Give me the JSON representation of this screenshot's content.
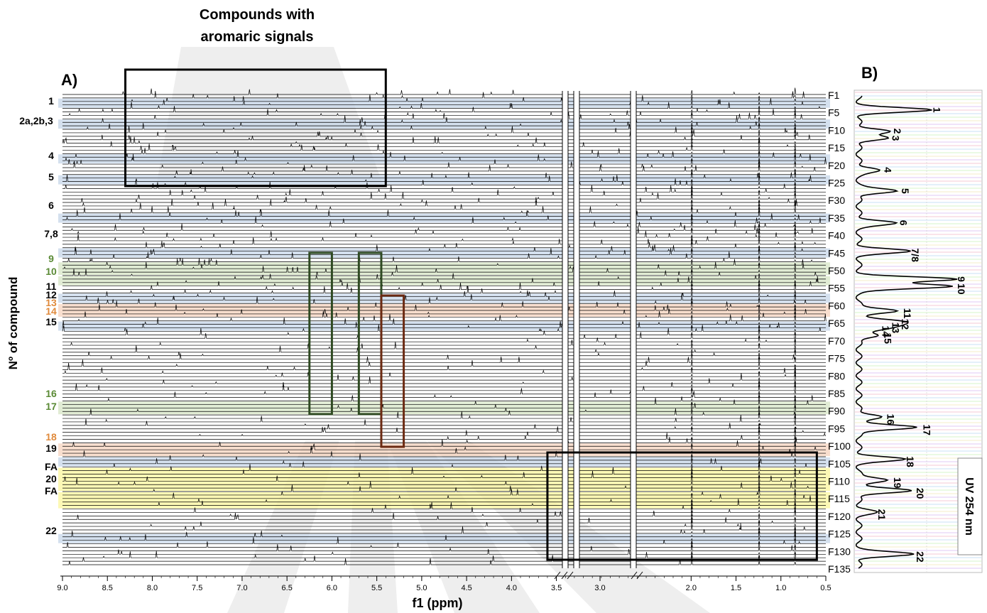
{
  "figure": {
    "panel_a_label": "A)",
    "panel_b_label": "B)",
    "callout_title_line1": "Compounds with",
    "callout_title_line2": "aromaric signals",
    "y_axis_title": "Nº of compound",
    "uv_label": "UV 254 nm"
  },
  "colors": {
    "blue_band": "#c6d5e8",
    "green_band": "#d7e6c6",
    "orange_band": "#f6d3bd",
    "yellow_band": "#fbf59c",
    "green_box": "#2f4a22",
    "brown_box": "#6b2a12",
    "green_text": "#5a8a35",
    "orange_text": "#e08a3c",
    "spectrum_line": "#000000"
  },
  "chart_data": [
    {
      "type": "line",
      "title": "A)",
      "xlabel": "f1  (ppm)",
      "ylabel": "Nº of compound",
      "xlim": [
        9.0,
        0.5
      ],
      "x_ticks": [
        "9.0",
        "8.5",
        "8.0",
        "7.5",
        "7.0",
        "6.5",
        "6.0",
        "5.5",
        "5.0",
        "4.5",
        "4.0",
        "3.5",
        "3.0",
        "2.0",
        "1.5",
        "1.0",
        "0.5"
      ],
      "fractions": [
        "F1",
        "F5",
        "F10",
        "F15",
        "F20",
        "F25",
        "F30",
        "F35",
        "F40",
        "F45",
        "F50",
        "F55",
        "F60",
        "F65",
        "F70",
        "F75",
        "F80",
        "F85",
        "F90",
        "F95",
        "F100",
        "F105",
        "F110",
        "F115",
        "F120",
        "F125",
        "F130",
        "F135"
      ],
      "compound_labels": [
        {
          "text": "1",
          "color": "black"
        },
        {
          "text": "2a,2b,3",
          "color": "black"
        },
        {
          "text": "4",
          "color": "black"
        },
        {
          "text": "5",
          "color": "black"
        },
        {
          "text": "6",
          "color": "black"
        },
        {
          "text": "7,8",
          "color": "black"
        },
        {
          "text": "9",
          "color": "green"
        },
        {
          "text": "10",
          "color": "green"
        },
        {
          "text": "11",
          "color": "black"
        },
        {
          "text": "12",
          "color": "black"
        },
        {
          "text": "13",
          "color": "orange"
        },
        {
          "text": "14",
          "color": "orange"
        },
        {
          "text": "15",
          "color": "black"
        },
        {
          "text": "16",
          "color": "green"
        },
        {
          "text": "17",
          "color": "green"
        },
        {
          "text": "18",
          "color": "orange"
        },
        {
          "text": "19",
          "color": "black"
        },
        {
          "text": "FA",
          "color": "black"
        },
        {
          "text": "20",
          "color": "black"
        },
        {
          "text": "FA",
          "color": "black"
        },
        {
          "text": "22",
          "color": "black"
        }
      ],
      "highlighted_bands": [
        {
          "fractions": [
            3,
            4
          ],
          "color": "blue"
        },
        {
          "fractions": [
            9,
            10
          ],
          "color": "blue"
        },
        {
          "fractions": [
            19,
            20
          ],
          "color": "blue"
        },
        {
          "fractions": [
            25,
            26
          ],
          "color": "blue"
        },
        {
          "fractions": [
            36,
            37
          ],
          "color": "blue"
        },
        {
          "fractions": [
            46,
            47
          ],
          "color": "blue"
        },
        {
          "fractions": [
            50,
            52
          ],
          "color": "green"
        },
        {
          "fractions": [
            54,
            55
          ],
          "color": "green"
        },
        {
          "fractions": [
            59,
            60
          ],
          "color": "blue"
        },
        {
          "fractions": [
            62,
            64
          ],
          "color": "orange"
        },
        {
          "fractions": [
            67,
            68
          ],
          "color": "blue"
        },
        {
          "fractions": [
            90,
            92
          ],
          "color": "green"
        },
        {
          "fractions": [
            102,
            104
          ],
          "color": "orange"
        },
        {
          "fractions": [
            106,
            107
          ],
          "color": "blue"
        },
        {
          "fractions": [
            109,
            114
          ],
          "color": "yellow"
        },
        {
          "fractions": [
            116,
            119
          ],
          "color": "yellow"
        },
        {
          "fractions": [
            128,
            129
          ],
          "color": "blue"
        }
      ],
      "annotation_boxes": [
        {
          "name": "aromatic",
          "color": "black",
          "ppm_range": [
            8.3,
            5.4
          ]
        },
        {
          "name": "green-1",
          "color": "green",
          "ppm_range": [
            6.25,
            6.0
          ]
        },
        {
          "name": "green-2",
          "color": "green",
          "ppm_range": [
            5.7,
            5.45
          ]
        },
        {
          "name": "brown",
          "color": "brown",
          "ppm_range": [
            5.45,
            5.2
          ]
        },
        {
          "name": "aliphatic",
          "color": "black",
          "ppm_range": [
            3.6,
            0.6
          ]
        }
      ]
    },
    {
      "type": "line",
      "title": "B)",
      "ylabel": "UV 254 nm",
      "orientation": "vertical",
      "y_range_fraction": [
        1,
        135
      ],
      "peaks": [
        {
          "label": "1",
          "fraction": 5,
          "intensity": 0.72
        },
        {
          "label": "2",
          "fraction": 11,
          "intensity": 0.32
        },
        {
          "label": "3",
          "fraction": 13,
          "intensity": 0.3
        },
        {
          "label": "4",
          "fraction": 22,
          "intensity": 0.22
        },
        {
          "label": "5",
          "fraction": 28,
          "intensity": 0.4
        },
        {
          "label": "6",
          "fraction": 37,
          "intensity": 0.38
        },
        {
          "label": "7/8",
          "fraction": 45,
          "intensity": 0.5
        },
        {
          "label": "9",
          "fraction": 53,
          "intensity": 0.97
        },
        {
          "label": "10",
          "fraction": 55,
          "intensity": 0.97
        },
        {
          "label": "11",
          "fraction": 62,
          "intensity": 0.42
        },
        {
          "label": "12",
          "fraction": 65,
          "intensity": 0.4
        },
        {
          "label": "13",
          "fraction": 66,
          "intensity": 0.3
        },
        {
          "label": "14",
          "fraction": 67,
          "intensity": 0.2
        },
        {
          "label": "15",
          "fraction": 69,
          "intensity": 0.22
        },
        {
          "label": "16",
          "fraction": 92,
          "intensity": 0.25
        },
        {
          "label": "17",
          "fraction": 95,
          "intensity": 0.62
        },
        {
          "label": "18",
          "fraction": 104,
          "intensity": 0.45
        },
        {
          "label": "19",
          "fraction": 110,
          "intensity": 0.32
        },
        {
          "label": "20",
          "fraction": 113,
          "intensity": 0.55
        },
        {
          "label": "21",
          "fraction": 119,
          "intensity": 0.16
        },
        {
          "label": "22",
          "fraction": 131,
          "intensity": 0.55
        }
      ]
    }
  ]
}
